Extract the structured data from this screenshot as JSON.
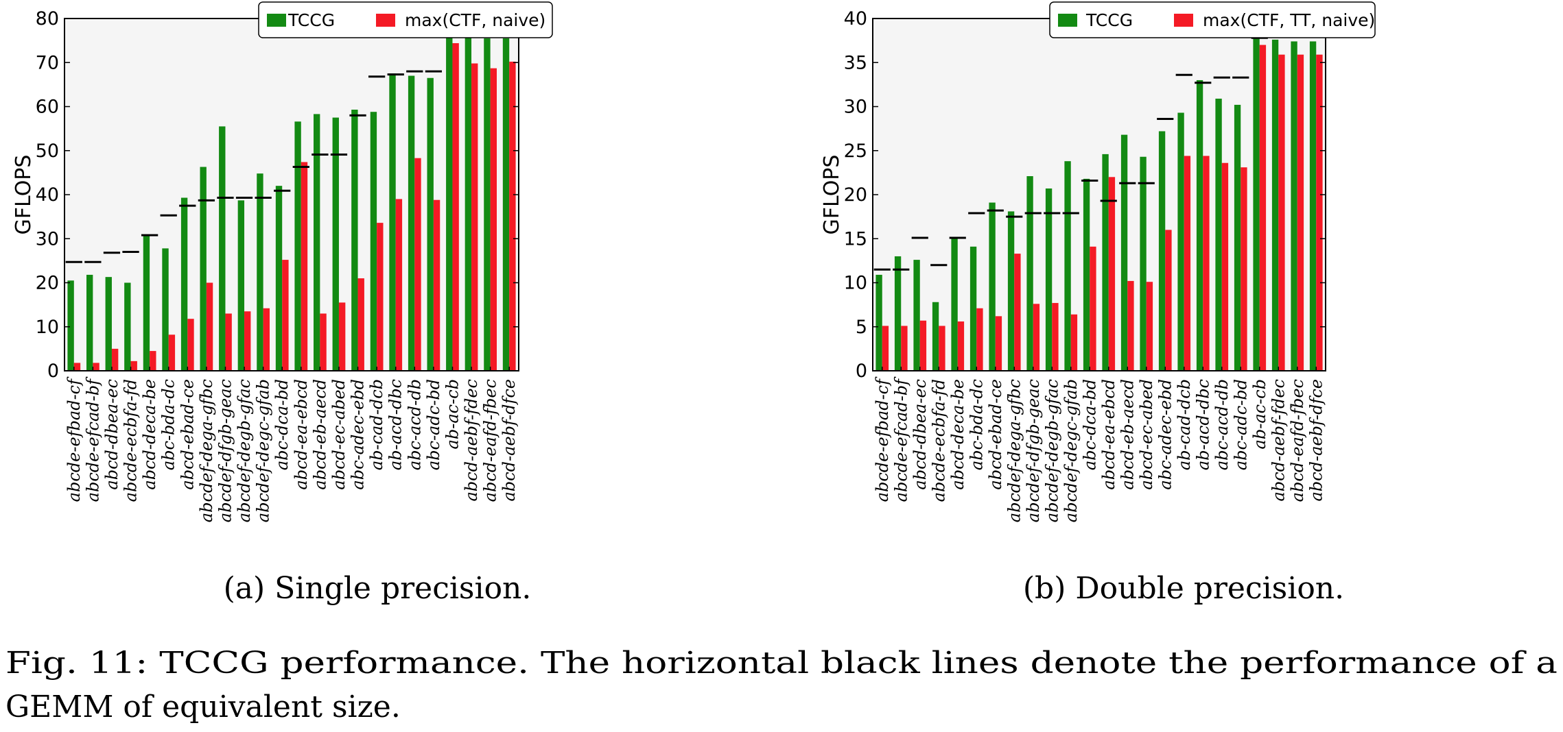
{
  "chart_data": [
    {
      "type": "bar",
      "ylabel": "GFLOPS",
      "ylim": [
        0,
        80
      ],
      "yticks": [
        0,
        10,
        20,
        30,
        40,
        50,
        60,
        70,
        80
      ],
      "grid": false,
      "legend_position": "top-center",
      "categories": [
        "abcde-efbad-cf",
        "abcde-efcad-bf",
        "abcd-dbea-ec",
        "abcde-ecbfa-fd",
        "abcd-deca-be",
        "abc-bda-dc",
        "abcd-ebad-ce",
        "abcdef-dega-gfbc",
        "abcdef-dfgb-geac",
        "abcdef-degb-gfac",
        "abcdef-degc-gfab",
        "abc-dca-bd",
        "abcd-ea-ebcd",
        "abcd-eb-aecd",
        "abcd-ec-abed",
        "abc-adec-ebd",
        "ab-cad-dcb",
        "ab-acd-dbc",
        "abc-acd-db",
        "abc-adc-bd",
        "ab-ac-cb",
        "abcd-aebf-fdec",
        "abcd-eafd-fbec",
        "abcd-aebf-dfce"
      ],
      "series": [
        {
          "name": "TCCG",
          "color": "#138a13",
          "values": [
            20.5,
            21.8,
            21.3,
            20.0,
            30.8,
            27.8,
            39.3,
            46.3,
            55.5,
            38.7,
            44.8,
            42.0,
            56.6,
            58.3,
            57.5,
            59.3,
            58.8,
            67.5,
            67.0,
            66.5,
            76.0,
            75.8,
            75.5,
            75.5
          ]
        },
        {
          "name": "max(CTF, naive)",
          "color": "#f41a25",
          "values": [
            1.8,
            1.8,
            5.0,
            2.2,
            4.5,
            8.2,
            11.8,
            20.0,
            13.0,
            13.5,
            14.2,
            25.2,
            47.4,
            13.0,
            15.5,
            21.0,
            33.6,
            39.0,
            48.3,
            38.8,
            74.4,
            69.8,
            68.7,
            70.2
          ]
        }
      ],
      "gemm": [
        24.7,
        24.7,
        26.8,
        27.0,
        30.8,
        35.3,
        37.5,
        38.7,
        39.3,
        39.3,
        39.3,
        40.9,
        46.3,
        49.1,
        49.1,
        58.0,
        66.8,
        67.3,
        68.0,
        68.0,
        76.0,
        76.3,
        76.3,
        76.3
      ],
      "caption": "(a) Single precision."
    },
    {
      "type": "bar",
      "ylabel": "GFLOPS",
      "ylim": [
        0,
        40
      ],
      "yticks": [
        0,
        5,
        10,
        15,
        20,
        25,
        30,
        35,
        40
      ],
      "grid": false,
      "legend_position": "top-center",
      "categories": [
        "abcde-efbad-cf",
        "abcde-efcad-bf",
        "abcd-dbea-ec",
        "abcde-ecbfa-fd",
        "abcd-deca-be",
        "abc-bda-dc",
        "abcd-ebad-ce",
        "abcdef-dega-gfbc",
        "abcdef-dfgb-geac",
        "abcdef-degb-gfac",
        "abcdef-degc-gfab",
        "abc-dca-bd",
        "abcd-ea-ebcd",
        "abcd-eb-aecd",
        "abcd-ec-abed",
        "abc-adec-ebd",
        "ab-cad-dcb",
        "ab-acd-dbc",
        "abc-acd-db",
        "abc-adc-bd",
        "ab-ac-cb",
        "abcd-aebf-fdec",
        "abcd-eafd-fbec",
        "abcd-aebf-dfce"
      ],
      "series": [
        {
          "name": "TCCG",
          "color": "#138a13",
          "values": [
            10.9,
            13.0,
            12.6,
            7.8,
            15.0,
            14.1,
            19.1,
            18.1,
            22.1,
            20.7,
            23.8,
            21.8,
            24.6,
            26.8,
            24.3,
            27.2,
            29.3,
            33.0,
            30.9,
            30.2,
            37.7,
            37.6,
            37.4,
            37.4
          ]
        },
        {
          "name": "max(CTF, TT, naive)",
          "color": "#f41a25",
          "values": [
            5.1,
            5.1,
            5.7,
            5.1,
            5.6,
            7.1,
            6.2,
            13.3,
            7.6,
            7.7,
            6.4,
            14.1,
            22.0,
            10.2,
            10.1,
            16.0,
            24.4,
            24.4,
            23.6,
            23.1,
            37.0,
            35.9,
            35.9,
            35.9
          ]
        }
      ],
      "gemm": [
        11.5,
        11.5,
        15.1,
        12.0,
        15.1,
        17.9,
        18.2,
        17.5,
        17.9,
        17.9,
        17.9,
        21.6,
        19.3,
        21.3,
        21.3,
        28.6,
        33.6,
        32.7,
        33.3,
        33.3,
        37.8,
        38.0,
        38.0,
        37.9
      ],
      "caption": "(b) Double precision."
    }
  ],
  "figure_caption": {
    "line1": "Fig. 11: TCCG performance. The horizontal black lines denote the performance of a",
    "line2": "GEMM of equivalent size."
  }
}
